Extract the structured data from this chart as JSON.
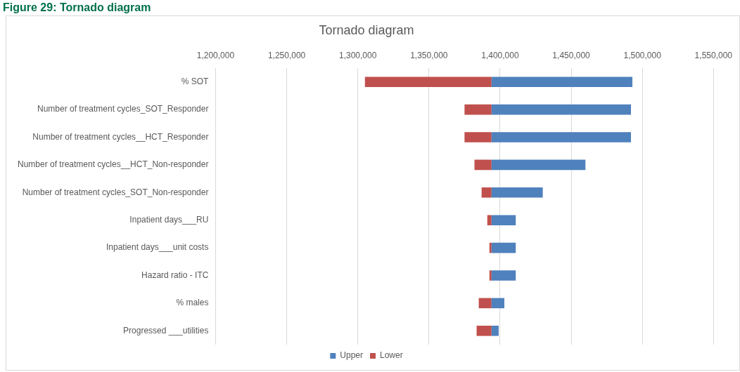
{
  "chart_data": {
    "type": "bar",
    "orientation": "horizontal",
    "title": "Tornado diagram",
    "annotations": [
      "Figure 29: Tornado diagram"
    ],
    "categories": [
      "% SOT",
      "Number of treatment cycles_SOT_Responder",
      "Number of treatment cycles__HCT_Responder",
      "Number of treatment cycles__HCT_Non-responder",
      "Number of treatment cycles_SOT_Non-responder",
      "Inpatient days___RU",
      "Inpatient days___unit costs",
      "Hazard ratio - ITC",
      "% males",
      "Progressed ___utilities"
    ],
    "series": [
      {
        "name": "Upper",
        "color": "#4f81bd",
        "base": [
          1394000,
          1394000,
          1394000,
          1394000,
          1394000,
          1394000,
          1394000,
          1394000,
          1394000,
          1394000
        ],
        "values": [
          99000,
          98000,
          98000,
          66000,
          36000,
          17000,
          17000,
          17000,
          9000,
          5000
        ]
      },
      {
        "name": "Lower",
        "color": "#c0504d",
        "base": [
          1394000,
          1394000,
          1394000,
          1394000,
          1394000,
          1394000,
          1394000,
          1394000,
          1394000,
          1394000
        ],
        "values": [
          -89000,
          -19000,
          -19000,
          -12000,
          -7000,
          -3000,
          -1500,
          -1500,
          -9000,
          -10500
        ]
      }
    ],
    "xlim": [
      1200000,
      1550000
    ],
    "xticks": [
      {
        "value": 1200000,
        "label": "1,200,000"
      },
      {
        "value": 1250000,
        "label": "1,250,000"
      },
      {
        "value": 1300000,
        "label": "1,300,000"
      },
      {
        "value": 1350000,
        "label": "1,350,000"
      },
      {
        "value": 1400000,
        "label": "1,400,000"
      },
      {
        "value": 1450000,
        "label": "1,450,000"
      },
      {
        "value": 1500000,
        "label": "1,500,000"
      },
      {
        "value": 1550000,
        "label": "1,550,000"
      }
    ],
    "grid": "x",
    "legend": "bottom"
  }
}
